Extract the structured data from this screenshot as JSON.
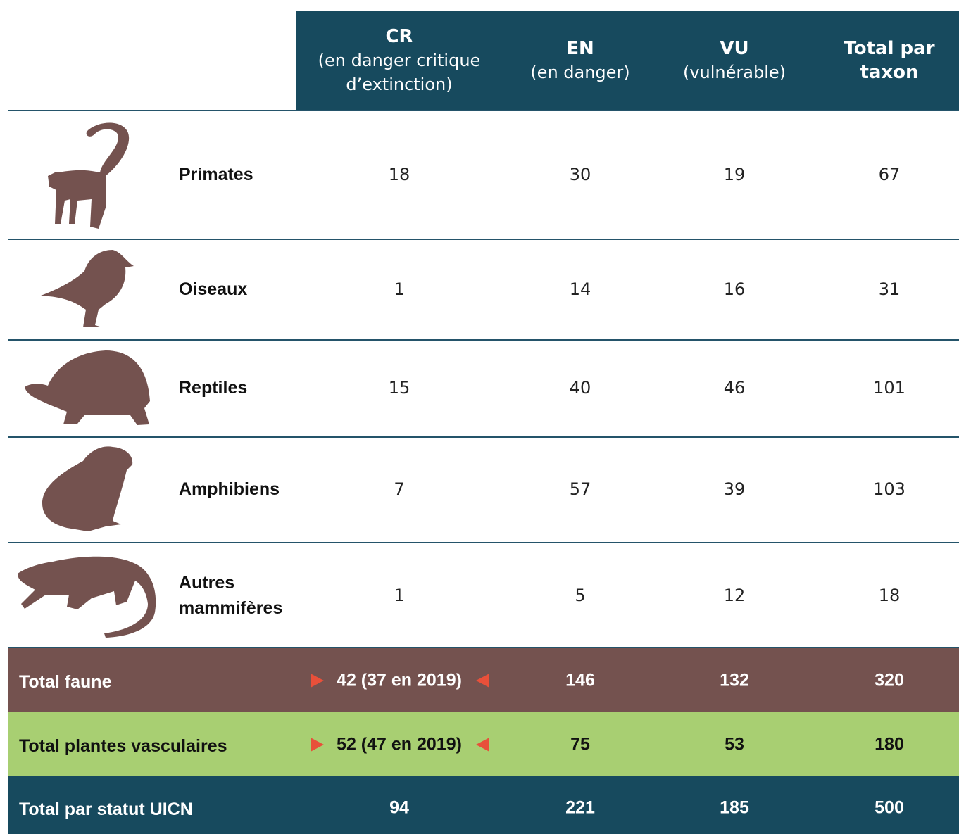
{
  "table": {
    "header": [
      {
        "code": "CR",
        "desc": "(en danger critique d’extinction)"
      },
      {
        "code": "EN",
        "desc": "(en danger)"
      },
      {
        "code": "VU",
        "desc": "(vulnérable)"
      },
      {
        "code": "Total par taxon"
      }
    ],
    "rows": [
      {
        "label": "Primates",
        "values": [
          18,
          30,
          19,
          67
        ]
      },
      {
        "label": "Oiseaux",
        "values": [
          1,
          14,
          16,
          31
        ]
      },
      {
        "label": "Reptiles",
        "values": [
          15,
          40,
          46,
          101
        ]
      },
      {
        "label": "Amphibiens",
        "values": [
          7,
          57,
          39,
          103
        ]
      },
      {
        "label": "Autres mammifères",
        "values": [
          1,
          5,
          12,
          18
        ]
      }
    ],
    "totals": [
      {
        "label": "Total faune",
        "values": [
          "42 (37 en 2019)",
          146,
          132,
          320
        ]
      },
      {
        "label": "Total plantes vasculaires",
        "values": [
          "52 (47 en 2019)",
          75,
          53,
          180
        ]
      },
      {
        "label": "Total par statut UICN",
        "values": [
          94,
          221,
          185,
          500
        ]
      }
    ]
  }
}
